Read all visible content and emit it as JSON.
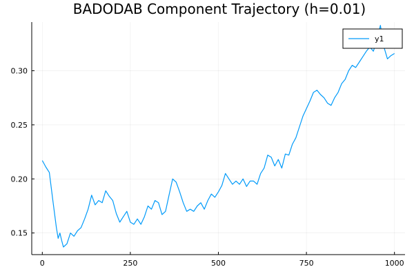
{
  "chart_data": {
    "type": "line",
    "title": "BADODAB Component Trajectory (h=0.01)",
    "xlabel": "",
    "ylabel": "",
    "xlim": [
      -30,
      1030
    ],
    "ylim": [
      0.13,
      0.345
    ],
    "xticks": [
      0,
      250,
      500,
      750,
      1000
    ],
    "xtick_labels": [
      "0",
      "250",
      "500",
      "750",
      "1000"
    ],
    "yticks": [
      0.15,
      0.2,
      0.25,
      0.3
    ],
    "ytick_labels": [
      "0.15",
      "0.20",
      "0.25",
      "0.30"
    ],
    "grid": true,
    "legend": "top-right",
    "series": [
      {
        "name": "y1",
        "color": "#009af9",
        "x": [
          0,
          10,
          20,
          30,
          40,
          45,
          50,
          55,
          60,
          70,
          80,
          90,
          100,
          110,
          120,
          130,
          140,
          150,
          160,
          170,
          180,
          190,
          200,
          210,
          220,
          230,
          240,
          250,
          260,
          270,
          280,
          290,
          300,
          310,
          320,
          330,
          340,
          350,
          360,
          370,
          380,
          390,
          400,
          410,
          420,
          430,
          440,
          450,
          460,
          470,
          480,
          490,
          500,
          510,
          520,
          530,
          540,
          550,
          560,
          570,
          580,
          590,
          600,
          610,
          620,
          630,
          640,
          650,
          660,
          670,
          680,
          690,
          700,
          710,
          720,
          730,
          740,
          750,
          760,
          770,
          780,
          790,
          800,
          810,
          820,
          830,
          840,
          850,
          860,
          870,
          880,
          890,
          900,
          910,
          920,
          930,
          940,
          950,
          960,
          970,
          980,
          990,
          1000
        ],
        "y": [
          0.217,
          0.211,
          0.206,
          0.18,
          0.155,
          0.145,
          0.15,
          0.143,
          0.137,
          0.14,
          0.15,
          0.147,
          0.152,
          0.155,
          0.163,
          0.172,
          0.185,
          0.176,
          0.18,
          0.178,
          0.189,
          0.184,
          0.18,
          0.168,
          0.16,
          0.165,
          0.17,
          0.16,
          0.158,
          0.163,
          0.158,
          0.165,
          0.175,
          0.172,
          0.18,
          0.178,
          0.167,
          0.17,
          0.185,
          0.2,
          0.197,
          0.188,
          0.178,
          0.17,
          0.172,
          0.17,
          0.175,
          0.178,
          0.172,
          0.18,
          0.186,
          0.183,
          0.188,
          0.194,
          0.205,
          0.2,
          0.195,
          0.198,
          0.195,
          0.2,
          0.193,
          0.198,
          0.198,
          0.195,
          0.205,
          0.21,
          0.222,
          0.22,
          0.212,
          0.218,
          0.21,
          0.223,
          0.222,
          0.232,
          0.238,
          0.248,
          0.258,
          0.265,
          0.272,
          0.28,
          0.282,
          0.278,
          0.275,
          0.27,
          0.268,
          0.275,
          0.28,
          0.288,
          0.292,
          0.3,
          0.305,
          0.303,
          0.308,
          0.313,
          0.318,
          0.322,
          0.318,
          0.328,
          0.342,
          0.322,
          0.311,
          0.314,
          0.316
        ]
      }
    ]
  }
}
